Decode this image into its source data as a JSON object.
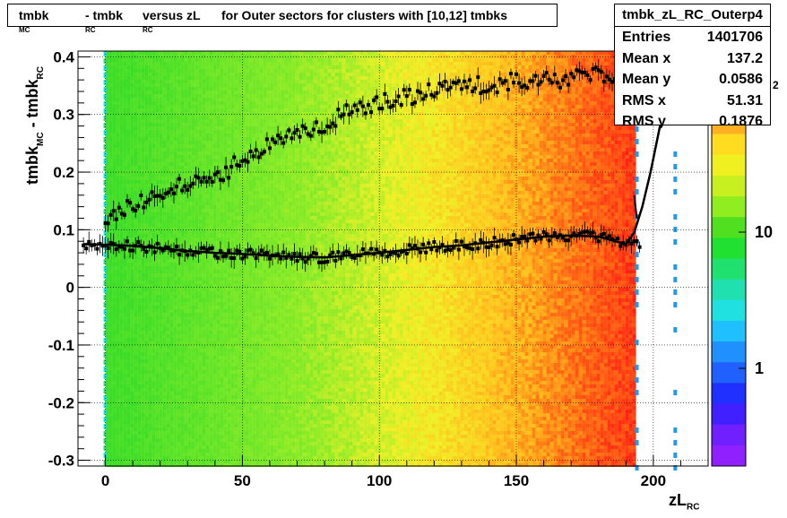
{
  "chart_data": {
    "type": "heatmap",
    "title_parts": {
      "a": "tmbk",
      "a_sub": "MC",
      "b": " - tmbk",
      "b_sub": "RC",
      "c": " versus zL",
      "c_sub": "RC",
      "d": " for Outer sectors for clusters with [10,12] tmbks"
    },
    "xlabel": "zL",
    "xlabel_sub": "RC",
    "ylabel_parts": {
      "a": "tmbk",
      "a_sub": "MC",
      "b": " - tmbk",
      "b_sub": "RC"
    },
    "xlim": [
      -10,
      220
    ],
    "ylim": [
      -0.31,
      0.41
    ],
    "x_ticks": [
      0,
      50,
      100,
      150,
      200
    ],
    "x_tick_labels": [
      "0",
      "50",
      "100",
      "150",
      "200"
    ],
    "y_ticks": [
      -0.3,
      -0.2,
      -0.1,
      0,
      0.1,
      0.2,
      0.3,
      0.4
    ],
    "y_tick_labels": [
      "-0.3",
      "-0.2",
      "-0.1",
      "0",
      "0.1",
      "0.2",
      "0.3",
      "0.4"
    ],
    "grid": true,
    "colorbar": {
      "scale": "log",
      "labels": [
        "1",
        "10"
      ],
      "exponent_label": "2"
    },
    "profiles": [
      {
        "name": "upper",
        "x": [
          0,
          10,
          20,
          30,
          40,
          50,
          60,
          70,
          80,
          90,
          100,
          110,
          120,
          130,
          140,
          150,
          160,
          170,
          180,
          190
        ],
        "y": [
          0.12,
          0.14,
          0.16,
          0.18,
          0.19,
          0.22,
          0.25,
          0.27,
          0.28,
          0.31,
          0.32,
          0.33,
          0.34,
          0.35,
          0.35,
          0.36,
          0.36,
          0.36,
          0.37,
          0.36
        ]
      },
      {
        "name": "lower",
        "x": [
          -8,
          0,
          10,
          20,
          30,
          40,
          50,
          60,
          70,
          80,
          90,
          100,
          110,
          120,
          130,
          140,
          150,
          160,
          170,
          180,
          190,
          195
        ],
        "y": [
          0.075,
          0.074,
          0.072,
          0.068,
          0.063,
          0.06,
          0.058,
          0.055,
          0.053,
          0.052,
          0.056,
          0.06,
          0.065,
          0.07,
          0.073,
          0.078,
          0.083,
          0.088,
          0.09,
          0.088,
          0.075,
          0.078
        ]
      }
    ]
  },
  "stats": {
    "name": "tmbk_zL_RC_Outerp4",
    "rows": [
      {
        "k": "Entries",
        "v": "1401706"
      },
      {
        "k": "Mean x",
        "v": "137.2"
      },
      {
        "k": "Mean y",
        "v": "0.0586"
      },
      {
        "k": "RMS x",
        "v": "51.31"
      },
      {
        "k": "RMS y",
        "v": "0.1876"
      }
    ]
  }
}
